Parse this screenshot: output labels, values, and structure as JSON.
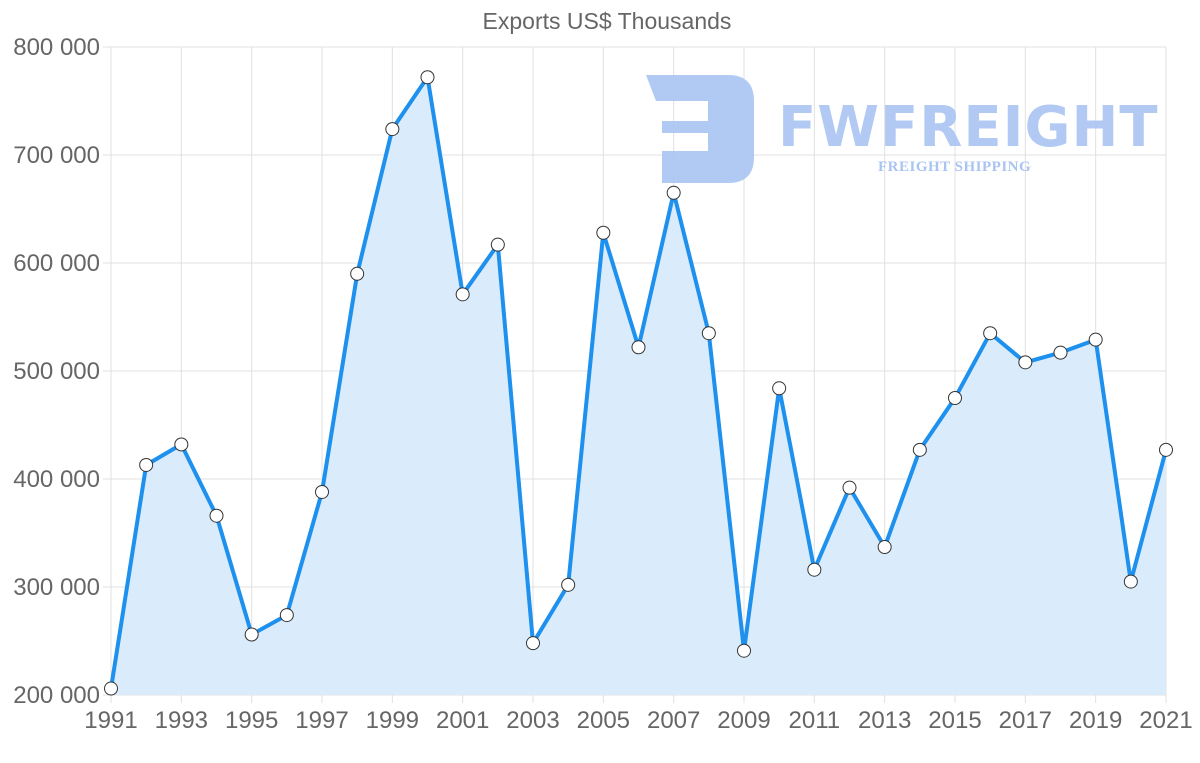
{
  "chart_data": {
    "type": "line",
    "title": "Exports US$ Thousands",
    "xlabel": "",
    "ylabel": "",
    "x": [
      1991,
      1992,
      1993,
      1994,
      1995,
      1996,
      1997,
      1998,
      1999,
      2000,
      2001,
      2002,
      2003,
      2004,
      2005,
      2006,
      2007,
      2008,
      2009,
      2010,
      2011,
      2012,
      2013,
      2014,
      2015,
      2016,
      2017,
      2018,
      2019,
      2020,
      2021
    ],
    "series": [
      {
        "name": "Exports",
        "values": [
          206000,
          413000,
          432000,
          366000,
          256000,
          274000,
          388000,
          590000,
          724000,
          772000,
          571000,
          617000,
          248000,
          302000,
          628000,
          522000,
          665000,
          535000,
          241000,
          484000,
          316000,
          392000,
          337000,
          427000,
          475000,
          535000,
          508000,
          517000,
          529000,
          305000,
          427000
        ]
      }
    ],
    "ylim": [
      200000,
      800000
    ],
    "yticks": [
      "800 000",
      "700 000",
      "600 000",
      "500 000",
      "400 000",
      "300 000",
      "200 000"
    ],
    "xticks": [
      "1991",
      "1993",
      "1995",
      "1997",
      "1999",
      "2001",
      "2003",
      "2005",
      "2007",
      "2009",
      "2011",
      "2013",
      "2015",
      "2017",
      "2019",
      "2021"
    ],
    "grid": true,
    "legend": "none",
    "fill": true,
    "colors": {
      "line": "#1e90ee",
      "fill": "#d8ebfb",
      "point_fill": "#ffffff",
      "point_stroke": "#333333",
      "grid": "#e0e0e0"
    }
  },
  "watermark": {
    "brand": "FWFREIGHT",
    "tagline": "FREIGHT SHIPPING",
    "color": "#a9c4f2"
  }
}
